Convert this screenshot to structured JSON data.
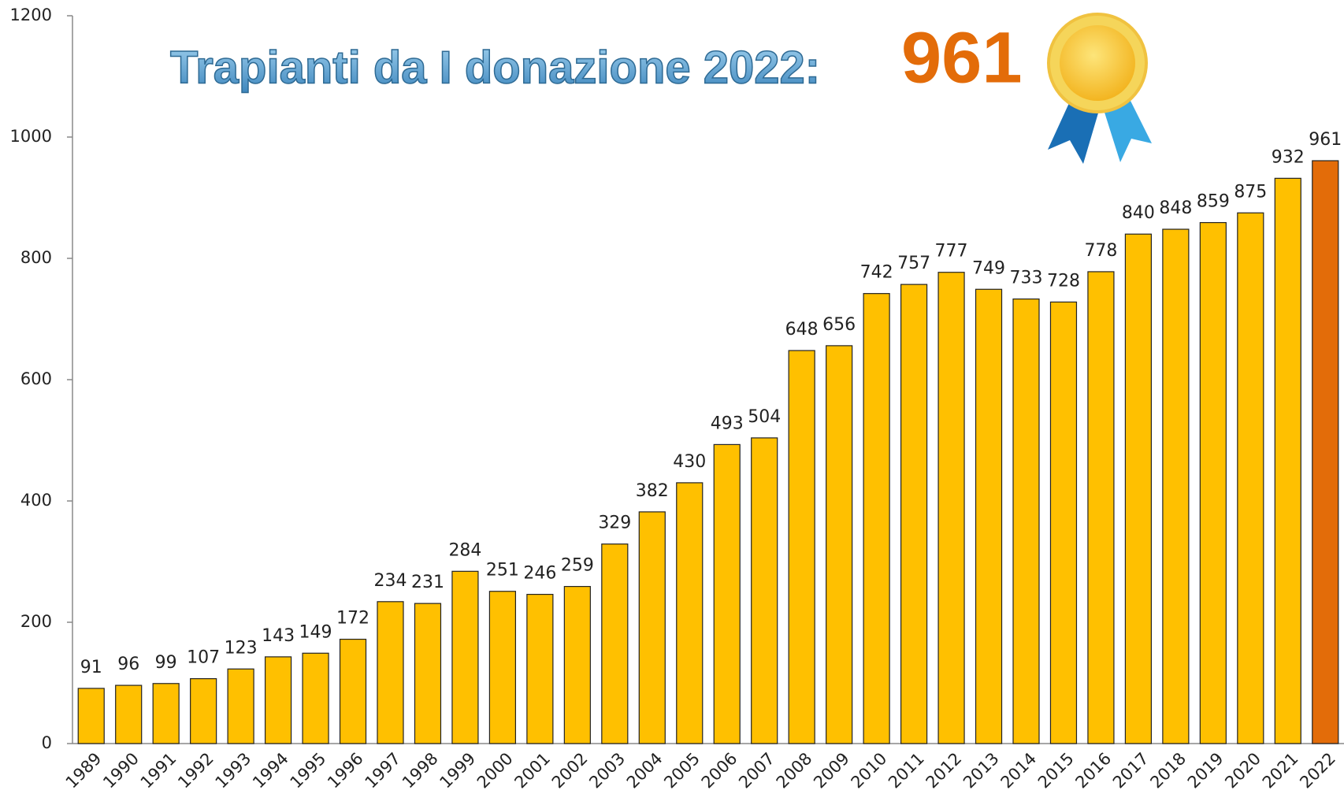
{
  "chart_data": {
    "type": "bar",
    "title": "Trapianti da I donazione 2022:",
    "title_highlight": "961",
    "categories": [
      "1989",
      "1990",
      "1991",
      "1992",
      "1993",
      "1994",
      "1995",
      "1996",
      "1997",
      "1998",
      "1999",
      "2000",
      "2001",
      "2002",
      "2003",
      "2004",
      "2005",
      "2006",
      "2007",
      "2008",
      "2009",
      "2010",
      "2011",
      "2012",
      "2013",
      "2014",
      "2015",
      "2016",
      "2017",
      "2018",
      "2019",
      "2020",
      "2021",
      "2022"
    ],
    "values": [
      91,
      96,
      99,
      107,
      123,
      143,
      149,
      172,
      234,
      231,
      284,
      251,
      246,
      259,
      329,
      382,
      430,
      493,
      504,
      648,
      656,
      742,
      757,
      777,
      749,
      733,
      728,
      778,
      840,
      848,
      859,
      875,
      932,
      961
    ],
    "colors": [
      "#ffc000",
      "#ffc000",
      "#ffc000",
      "#ffc000",
      "#ffc000",
      "#ffc000",
      "#ffc000",
      "#ffc000",
      "#ffc000",
      "#ffc000",
      "#ffc000",
      "#ffc000",
      "#ffc000",
      "#ffc000",
      "#ffc000",
      "#ffc000",
      "#ffc000",
      "#ffc000",
      "#ffc000",
      "#ffc000",
      "#ffc000",
      "#ffc000",
      "#ffc000",
      "#ffc000",
      "#ffc000",
      "#ffc000",
      "#ffc000",
      "#ffc000",
      "#ffc000",
      "#ffc000",
      "#ffc000",
      "#ffc000",
      "#ffc000",
      "#e36c09"
    ],
    "ylim": [
      0,
      1200
    ],
    "yticks": [
      0,
      200,
      400,
      600,
      800,
      1000,
      1200
    ],
    "grid": false
  }
}
